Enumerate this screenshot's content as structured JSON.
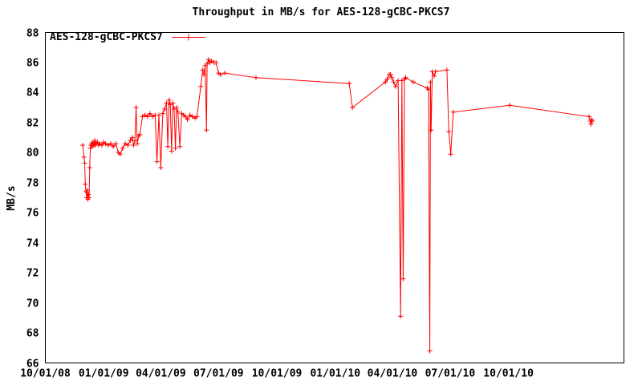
{
  "chart_data": {
    "type": "line",
    "title": "Throughput in MB/s for AES-128-gCBC-PKCS7",
    "ylabel": "MB/s",
    "xlabel": "",
    "legend": {
      "label": "AES-128-gCBC-PKCS7",
      "position": "top-left-inside"
    },
    "series_color": "#ff0000",
    "axis_color": "#000000",
    "marker": "plus",
    "grid": false,
    "x_range": [
      "2008-10-01",
      "2011-04-01"
    ],
    "y_range": [
      66,
      88
    ],
    "y_ticks": [
      66,
      68,
      70,
      72,
      74,
      76,
      78,
      80,
      82,
      84,
      86,
      88
    ],
    "x_ticks": [
      {
        "label": "10/01/08",
        "date": "2008-10-01"
      },
      {
        "label": "01/01/09",
        "date": "2009-01-01"
      },
      {
        "label": "04/01/09",
        "date": "2009-04-01"
      },
      {
        "label": "07/01/09",
        "date": "2009-07-01"
      },
      {
        "label": "10/01/09",
        "date": "2009-10-01"
      },
      {
        "label": "01/01/10",
        "date": "2010-01-01"
      },
      {
        "label": "04/01/10",
        "date": "2010-04-01"
      },
      {
        "label": "07/01/10",
        "date": "2010-07-01"
      },
      {
        "label": "10/01/10",
        "date": "2010-10-01"
      }
    ],
    "minor_x_tick_interval": "1 month",
    "series": [
      {
        "name": "AES-128-gCBC-PKCS7",
        "points": [
          [
            "2008-11-29",
            80.5
          ],
          [
            "2008-12-01",
            79.7
          ],
          [
            "2008-12-02",
            79.3
          ],
          [
            "2008-12-03",
            77.9
          ],
          [
            "2008-12-04",
            77.4
          ],
          [
            "2008-12-05",
            77.0
          ],
          [
            "2008-12-06",
            77.5
          ],
          [
            "2008-12-07",
            76.9
          ],
          [
            "2008-12-08",
            77.2
          ],
          [
            "2008-12-09",
            77.0
          ],
          [
            "2008-12-10",
            79.0
          ],
          [
            "2008-12-11",
            80.3
          ],
          [
            "2008-12-12",
            80.5
          ],
          [
            "2008-12-13",
            80.6
          ],
          [
            "2008-12-14",
            80.4
          ],
          [
            "2008-12-15",
            80.7
          ],
          [
            "2008-12-16",
            80.5
          ],
          [
            "2008-12-17",
            80.6
          ],
          [
            "2008-12-18",
            80.8
          ],
          [
            "2008-12-19",
            80.5
          ],
          [
            "2008-12-20",
            80.6
          ],
          [
            "2008-12-22",
            80.7
          ],
          [
            "2008-12-24",
            80.5
          ],
          [
            "2008-12-26",
            80.6
          ],
          [
            "2008-12-29",
            80.5
          ],
          [
            "2009-01-01",
            80.7
          ],
          [
            "2009-01-04",
            80.6
          ],
          [
            "2009-01-08",
            80.5
          ],
          [
            "2009-01-12",
            80.6
          ],
          [
            "2009-01-16",
            80.4
          ],
          [
            "2009-01-20",
            80.6
          ],
          [
            "2009-01-24",
            80.0
          ],
          [
            "2009-01-27",
            79.9
          ],
          [
            "2009-01-31",
            80.3
          ],
          [
            "2009-02-04",
            80.6
          ],
          [
            "2009-02-08",
            80.5
          ],
          [
            "2009-02-12",
            80.8
          ],
          [
            "2009-02-15",
            81.0
          ],
          [
            "2009-02-17",
            80.5
          ],
          [
            "2009-02-19",
            80.8
          ],
          [
            "2009-02-21",
            83.0
          ],
          [
            "2009-02-23",
            80.6
          ],
          [
            "2009-02-25",
            81.1
          ],
          [
            "2009-02-27",
            81.2
          ],
          [
            "2009-03-03",
            82.4
          ],
          [
            "2009-03-07",
            82.5
          ],
          [
            "2009-03-11",
            82.4
          ],
          [
            "2009-03-15",
            82.6
          ],
          [
            "2009-03-19",
            82.4
          ],
          [
            "2009-03-23",
            82.5
          ],
          [
            "2009-03-26",
            79.4
          ],
          [
            "2009-03-29",
            82.5
          ],
          [
            "2009-04-01",
            79.0
          ],
          [
            "2009-04-04",
            82.6
          ],
          [
            "2009-04-07",
            82.9
          ],
          [
            "2009-04-10",
            83.3
          ],
          [
            "2009-04-12",
            80.4
          ],
          [
            "2009-04-14",
            83.5
          ],
          [
            "2009-04-16",
            83.2
          ],
          [
            "2009-04-18",
            80.1
          ],
          [
            "2009-04-20",
            83.3
          ],
          [
            "2009-04-22",
            82.9
          ],
          [
            "2009-04-24",
            80.3
          ],
          [
            "2009-04-26",
            83.0
          ],
          [
            "2009-04-28",
            82.7
          ],
          [
            "2009-05-01",
            80.4
          ],
          [
            "2009-05-04",
            82.6
          ],
          [
            "2009-05-07",
            82.5
          ],
          [
            "2009-05-10",
            82.4
          ],
          [
            "2009-05-13",
            82.2
          ],
          [
            "2009-05-17",
            82.5
          ],
          [
            "2009-05-21",
            82.4
          ],
          [
            "2009-05-25",
            82.3
          ],
          [
            "2009-05-28",
            82.4
          ],
          [
            "2009-06-03",
            84.4
          ],
          [
            "2009-06-06",
            85.5
          ],
          [
            "2009-06-08",
            85.2
          ],
          [
            "2009-06-10",
            85.8
          ],
          [
            "2009-06-12",
            81.5
          ],
          [
            "2009-06-13",
            85.9
          ],
          [
            "2009-06-15",
            86.2
          ],
          [
            "2009-06-17",
            86.0
          ],
          [
            "2009-06-20",
            86.1
          ],
          [
            "2009-06-24",
            86.0
          ],
          [
            "2009-06-27",
            86.0
          ],
          [
            "2009-07-01",
            85.3
          ],
          [
            "2009-07-04",
            85.2
          ],
          [
            "2009-07-11",
            85.3
          ],
          [
            "2009-08-29",
            85.0
          ],
          [
            "2010-01-23",
            84.6
          ],
          [
            "2010-01-28",
            83.0
          ],
          [
            "2010-03-21",
            84.7
          ],
          [
            "2010-03-24",
            84.9
          ],
          [
            "2010-03-27",
            85.2
          ],
          [
            "2010-03-29",
            85.2
          ],
          [
            "2010-03-31",
            85.0
          ],
          [
            "2010-04-03",
            84.7
          ],
          [
            "2010-04-06",
            84.4
          ],
          [
            "2010-04-10",
            84.8
          ],
          [
            "2010-04-14",
            69.1
          ],
          [
            "2010-04-16",
            84.8
          ],
          [
            "2010-04-18",
            71.6
          ],
          [
            "2010-04-20",
            84.9
          ],
          [
            "2010-04-22",
            85.0
          ],
          [
            "2010-05-04",
            84.7
          ],
          [
            "2010-05-26",
            84.3
          ],
          [
            "2010-05-28",
            84.2
          ],
          [
            "2010-05-30",
            66.8
          ],
          [
            "2010-05-31",
            84.7
          ],
          [
            "2010-06-01",
            81.5
          ],
          [
            "2010-06-03",
            85.4
          ],
          [
            "2010-06-06",
            85.1
          ],
          [
            "2010-06-08",
            85.4
          ],
          [
            "2010-06-26",
            85.5
          ],
          [
            "2010-06-29",
            81.4
          ],
          [
            "2010-07-02",
            79.9
          ],
          [
            "2010-07-06",
            82.7
          ],
          [
            "2010-10-03",
            83.15
          ],
          [
            "2011-02-05",
            82.4
          ],
          [
            "2011-02-07",
            82.1
          ],
          [
            "2011-02-08",
            81.9
          ],
          [
            "2011-02-09",
            82.2
          ],
          [
            "2011-02-10",
            82.1
          ]
        ]
      }
    ]
  }
}
